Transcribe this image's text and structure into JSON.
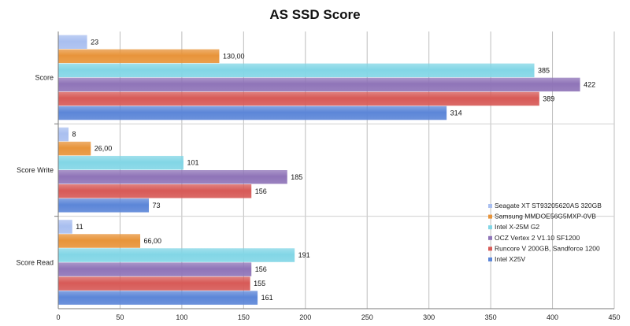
{
  "chart_data": {
    "type": "bar",
    "orientation": "horizontal",
    "title": "AS SSD Score",
    "categories": [
      "Score",
      "Score Write",
      "Score Read"
    ],
    "xlim": [
      0,
      450
    ],
    "xticks": [
      0,
      50,
      100,
      150,
      200,
      250,
      300,
      350,
      400,
      450
    ],
    "grid": true,
    "legend_position": "right",
    "series": [
      {
        "name": "Seagate XT ST93205620AS 320GB",
        "values": [
          23,
          8,
          11
        ],
        "labels": [
          "23",
          "8",
          "11"
        ],
        "color": "#a9bff0"
      },
      {
        "name": "Samsung MMDOE56G5MXP-0VB",
        "values": [
          130,
          26,
          66
        ],
        "labels": [
          "130,00",
          "26,00",
          "66,00"
        ],
        "color": "#e8943a"
      },
      {
        "name": "Intel X-25M G2",
        "values": [
          385,
          101,
          191
        ],
        "labels": [
          "385",
          "101",
          "191"
        ],
        "color": "#82d6e6"
      },
      {
        "name": "OCZ Vertex 2 V1.10 SF1200",
        "values": [
          422,
          185,
          156
        ],
        "labels": [
          "422",
          "185",
          "156"
        ],
        "color": "#8f74b8"
      },
      {
        "name": "Runcore V 200GB, Sandforce 1200",
        "values": [
          389,
          156,
          155
        ],
        "labels": [
          "389",
          "156",
          "155"
        ],
        "color": "#d75a57"
      },
      {
        "name": "Intel X25V",
        "values": [
          314,
          73,
          161
        ],
        "labels": [
          "314",
          "73",
          "161"
        ],
        "color": "#5c86d8"
      }
    ]
  }
}
